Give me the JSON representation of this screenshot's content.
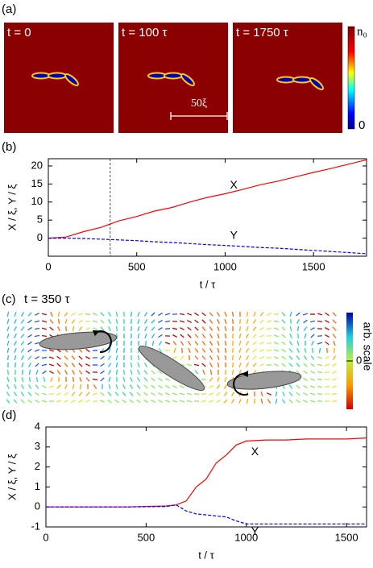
{
  "panel_a": {
    "label": "(a)",
    "frames": [
      "t = 0",
      "t = 100 τ",
      "t = 1750 τ"
    ],
    "colorbar_top": "n₀",
    "colorbar_bottom": "0",
    "scale_bar": "50ξ"
  },
  "panel_c": {
    "label": "(c)",
    "title": "t = 350 τ",
    "colorbar_label": "arb. scale",
    "colorbar_zero": "0"
  },
  "chart_data": [
    {
      "type": "line",
      "label": "(b)",
      "xlabel": "t / τ",
      "ylabel": "X / ξ, Y / ξ",
      "x": [
        0,
        100,
        200,
        300,
        400,
        500,
        600,
        700,
        800,
        900,
        1000,
        1100,
        1200,
        1300,
        1400,
        1500,
        1600,
        1700,
        1800
      ],
      "series": [
        {
          "name": "X",
          "color": "#ff0000",
          "dashed": false,
          "values": [
            0,
            0.3,
            1.8,
            3,
            4.8,
            6,
            7.5,
            8.5,
            10,
            11.3,
            12.3,
            13.5,
            14.8,
            15.8,
            17,
            18.2,
            19.3,
            20.5,
            21.7
          ]
        },
        {
          "name": "Y",
          "color": "#0000ff",
          "dashed": true,
          "values": [
            0,
            0,
            -0.1,
            -0.3,
            -0.5,
            -0.7,
            -1,
            -1.2,
            -1.5,
            -1.8,
            -2,
            -2.3,
            -2.6,
            -2.8,
            -3.1,
            -3.4,
            -3.7,
            -4,
            -4.3
          ]
        }
      ],
      "marker_x": 350,
      "xlim": [
        0,
        1800
      ],
      "xticks": [
        0,
        500,
        1000,
        1500
      ],
      "ylim": [
        -5,
        22
      ],
      "yticks": [
        0,
        5,
        10,
        15,
        20
      ]
    },
    {
      "type": "line",
      "label": "(d)",
      "xlabel": "t / τ",
      "ylabel": "X / ξ, Y / ξ",
      "x": [
        0,
        200,
        400,
        600,
        650,
        700,
        750,
        800,
        850,
        900,
        950,
        1000,
        1100,
        1200,
        1300,
        1400,
        1500,
        1600
      ],
      "series": [
        {
          "name": "X",
          "color": "#ff0000",
          "dashed": false,
          "values": [
            0,
            0,
            0,
            0.05,
            0.1,
            0.3,
            1.0,
            1.4,
            2.2,
            2.6,
            3.1,
            3.3,
            3.35,
            3.35,
            3.4,
            3.4,
            3.4,
            3.45
          ]
        },
        {
          "name": "Y",
          "color": "#0000ff",
          "dashed": true,
          "values": [
            0,
            0,
            0,
            0.02,
            0.1,
            -0.2,
            -0.35,
            -0.4,
            -0.45,
            -0.5,
            -0.7,
            -0.85,
            -0.85,
            -0.85,
            -0.85,
            -0.85,
            -0.85,
            -0.85
          ]
        }
      ],
      "xlim": [
        0,
        1600
      ],
      "xticks": [
        0,
        500,
        1000,
        1500
      ],
      "ylim": [
        -1,
        4
      ],
      "yticks": [
        -1,
        0,
        1,
        2,
        3,
        4
      ]
    }
  ]
}
